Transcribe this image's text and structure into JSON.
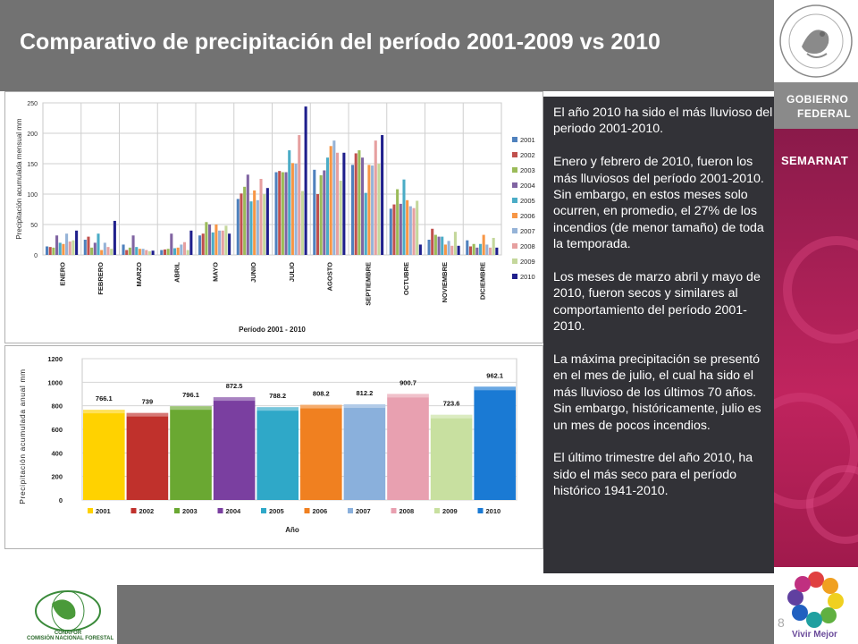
{
  "title": "Comparativo de precipitación del período 2001-2009 vs 2010",
  "side": {
    "gobierno_line1": "GOBIERNO",
    "gobierno_line2": "FEDERAL",
    "semarnat": "SEMARNAT",
    "vivir": "Vivir Mejor"
  },
  "footer": {
    "page_number": "8",
    "conafor_label": "CONAFOR",
    "conafor_name": "COMISIÓN NACIONAL FORESTAL"
  },
  "text_panel": {
    "p1": "El año 2010 ha sido el más lluvioso del periodo 2001-2010.",
    "p2": "Enero y febrero de 2010, fueron los más lluviosos del período 2001-2010. Sin embargo, en estos meses solo ocurren, en promedio, el 27% de los incendios (de menor tamaño) de toda la temporada.",
    "p3": "Los meses de marzo abril y mayo de 2010, fueron secos y similares al comportamiento del período 2001-2010.",
    "p4": "La máxima precipitación se presentó en el mes de julio, el cual ha sido el más lluvioso de los últimos 70 años. Sin embargo, históricamente, julio es un mes de pocos incendios.",
    "p5": "El último trimestre del año 2010, ha sido el más seco para el período histórico 1941-2010."
  },
  "colors": {
    "2001": "#4f81bd",
    "2002": "#c0504d",
    "2003": "#9bbb59",
    "2004": "#8064a2",
    "2005": "#4bacc6",
    "2006": "#f79646",
    "2007": "#95b3d7",
    "2008": "#e6a0a0",
    "2009": "#c4d79b",
    "2010": "#1f1f8c"
  },
  "colors_annual": {
    "2001": "#ffd200",
    "2002": "#c0312c",
    "2003": "#6aa832",
    "2004": "#7a3fa0",
    "2005": "#2fa8c8",
    "2006": "#f08020",
    "2007": "#8ab0dc",
    "2008": "#e8a0b0",
    "2009": "#c8e0a0",
    "2010": "#1a7ad4"
  },
  "chart_data": [
    {
      "type": "bar",
      "ylabel": "Precipitación acumulada mensual mm",
      "xlabel": "Período 2001 - 2010",
      "ylim": [
        0,
        250
      ],
      "yticks": [
        0,
        50,
        100,
        150,
        200,
        250
      ],
      "grid": true,
      "legend": "right",
      "categories": [
        "ENERO",
        "FEBRERO",
        "MARZO",
        "ABRIL",
        "MAYO",
        "JUNIO",
        "JULIO",
        "AGOSTO",
        "SEPTIEMBRE",
        "OCTUBRE",
        "NOVIEMBRE",
        "DICIEMBRE"
      ],
      "series": [
        {
          "name": "2001",
          "values": [
            14,
            25,
            17,
            8,
            32,
            92,
            136,
            140,
            148,
            76,
            25,
            24
          ]
        },
        {
          "name": "2002",
          "values": [
            13,
            30,
            8,
            9,
            35,
            101,
            138,
            100,
            167,
            83,
            43,
            14
          ]
        },
        {
          "name": "2003",
          "values": [
            12,
            12,
            12,
            10,
            54,
            112,
            136,
            131,
            172,
            108,
            33,
            18
          ]
        },
        {
          "name": "2004",
          "values": [
            32,
            20,
            32,
            35,
            50,
            132,
            136,
            139,
            160,
            84,
            30,
            12
          ]
        },
        {
          "name": "2005",
          "values": [
            20,
            35,
            13,
            11,
            37,
            88,
            172,
            160,
            102,
            124,
            30,
            18
          ]
        },
        {
          "name": "2006",
          "values": [
            18,
            8,
            10,
            12,
            50,
            106,
            151,
            179,
            148,
            90,
            17,
            33
          ]
        },
        {
          "name": "2007",
          "values": [
            35,
            20,
            10,
            17,
            40,
            90,
            150,
            188,
            147,
            80,
            23,
            17
          ]
        },
        {
          "name": "2008",
          "values": [
            22,
            13,
            8,
            21,
            40,
            125,
            197,
            168,
            188,
            77,
            15,
            12
          ]
        },
        {
          "name": "2009",
          "values": [
            24,
            10,
            6,
            8,
            48,
            100,
            105,
            122,
            150,
            89,
            38,
            28
          ]
        },
        {
          "name": "2010",
          "values": [
            40,
            56,
            7,
            40,
            35,
            110,
            244,
            168,
            197,
            17,
            15,
            12
          ]
        }
      ]
    },
    {
      "type": "bar",
      "ylabel": "Precipitación acumulada anual mm",
      "xlabel": "Año",
      "ylim": [
        0,
        1200
      ],
      "yticks": [
        0,
        200,
        400,
        600,
        800,
        1000,
        1200
      ],
      "grid": true,
      "legend": "bottom",
      "categories": [
        "2001",
        "2002",
        "2003",
        "2004",
        "2005",
        "2006",
        "2007",
        "2008",
        "2009",
        "2010"
      ],
      "values": [
        766.1,
        739,
        796.1,
        872.5,
        788.2,
        808.2,
        812.2,
        900.7,
        723.6,
        962.1
      ],
      "labels": [
        "766.1",
        "739",
        "796.1",
        "872.5",
        "788.2",
        "808.2",
        "812.2",
        "900.7",
        "723.6",
        "962.1"
      ]
    }
  ]
}
